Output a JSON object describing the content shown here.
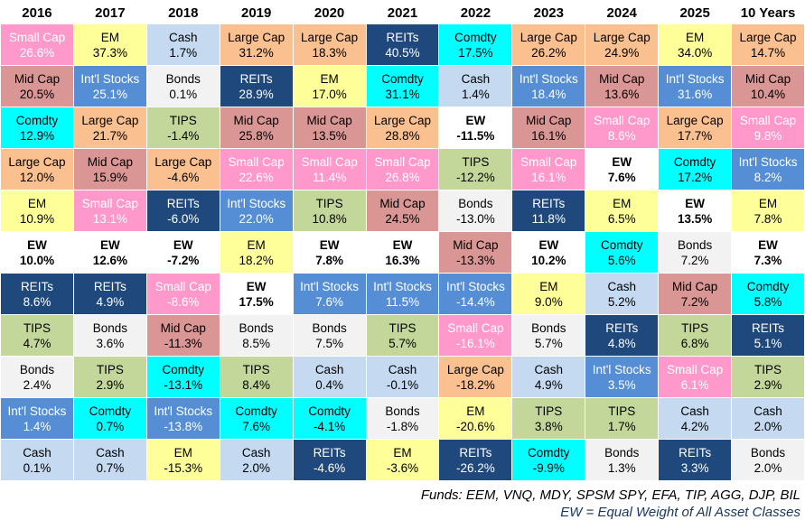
{
  "chart_data": {
    "type": "table",
    "layout": "asset-class returns quilt; each column ranked best to worst; cells colored by asset class",
    "assets": {
      "small_cap": {
        "label": "Small Cap",
        "bg": "#FF99CC",
        "fg": "#FFFFFF"
      },
      "mid_cap": {
        "label": "Mid Cap",
        "bg": "#D99694",
        "fg": "#000000"
      },
      "comdty": {
        "label": "Comdty",
        "bg": "#00FFFF",
        "fg": "#000000"
      },
      "large_cap": {
        "label": "Large Cap",
        "bg": "#FAC090",
        "fg": "#000000"
      },
      "em": {
        "label": "EM",
        "bg": "#FFFF99",
        "fg": "#000000"
      },
      "ew": {
        "label": "EW",
        "bg": "#FFFFFF",
        "fg": "#000000",
        "bold": true
      },
      "reits": {
        "label": "REITs",
        "bg": "#1F497D",
        "fg": "#FFFFFF"
      },
      "tips": {
        "label": "TIPS",
        "bg": "#C4D79B",
        "fg": "#000000"
      },
      "bonds": {
        "label": "Bonds",
        "bg": "#F2F2F2",
        "fg": "#000000"
      },
      "intl_stocks": {
        "label": "Int'l Stocks",
        "bg": "#558ED5",
        "fg": "#FFFFFF"
      },
      "cash": {
        "label": "Cash",
        "bg": "#C5D9F1",
        "fg": "#000000"
      }
    },
    "columns": [
      {
        "year": "2016",
        "cells": [
          [
            "small_cap",
            26.6
          ],
          [
            "mid_cap",
            20.5
          ],
          [
            "comdty",
            12.9
          ],
          [
            "large_cap",
            12.0
          ],
          [
            "em",
            10.9
          ],
          [
            "ew",
            10.0
          ],
          [
            "reits",
            8.6
          ],
          [
            "tips",
            4.7
          ],
          [
            "bonds",
            2.4
          ],
          [
            "intl_stocks",
            1.4
          ],
          [
            "cash",
            0.1
          ]
        ]
      },
      {
        "year": "2017",
        "cells": [
          [
            "em",
            37.3
          ],
          [
            "intl_stocks",
            25.1
          ],
          [
            "large_cap",
            21.7
          ],
          [
            "mid_cap",
            15.9
          ],
          [
            "small_cap",
            13.1
          ],
          [
            "ew",
            12.6
          ],
          [
            "reits",
            4.9
          ],
          [
            "bonds",
            3.6
          ],
          [
            "tips",
            2.9
          ],
          [
            "comdty",
            0.7
          ],
          [
            "cash",
            0.7
          ]
        ]
      },
      {
        "year": "2018",
        "cells": [
          [
            "cash",
            1.7
          ],
          [
            "bonds",
            0.1
          ],
          [
            "tips",
            -1.4
          ],
          [
            "large_cap",
            -4.6
          ],
          [
            "reits",
            -6.0
          ],
          [
            "ew",
            -7.2
          ],
          [
            "small_cap",
            -8.6
          ],
          [
            "mid_cap",
            -11.3
          ],
          [
            "comdty",
            -13.1
          ],
          [
            "intl_stocks",
            -13.8
          ],
          [
            "em",
            -15.3
          ]
        ]
      },
      {
        "year": "2019",
        "cells": [
          [
            "large_cap",
            31.2
          ],
          [
            "reits",
            28.9
          ],
          [
            "mid_cap",
            25.8
          ],
          [
            "small_cap",
            22.6
          ],
          [
            "intl_stocks",
            22.0
          ],
          [
            "em",
            18.2
          ],
          [
            "ew",
            17.5
          ],
          [
            "bonds",
            8.5
          ],
          [
            "tips",
            8.4
          ],
          [
            "comdty",
            7.6
          ],
          [
            "cash",
            2.0
          ]
        ]
      },
      {
        "year": "2020",
        "cells": [
          [
            "large_cap",
            18.3
          ],
          [
            "em",
            17.0
          ],
          [
            "mid_cap",
            13.5
          ],
          [
            "small_cap",
            11.4
          ],
          [
            "tips",
            10.8
          ],
          [
            "ew",
            7.8
          ],
          [
            "intl_stocks",
            7.6
          ],
          [
            "bonds",
            7.5
          ],
          [
            "cash",
            0.4
          ],
          [
            "comdty",
            -4.1
          ],
          [
            "reits",
            -4.6
          ]
        ]
      },
      {
        "year": "2021",
        "cells": [
          [
            "reits",
            40.5
          ],
          [
            "comdty",
            31.1
          ],
          [
            "large_cap",
            28.8
          ],
          [
            "small_cap",
            26.8
          ],
          [
            "mid_cap",
            24.5
          ],
          [
            "ew",
            16.3
          ],
          [
            "intl_stocks",
            11.5
          ],
          [
            "tips",
            5.7
          ],
          [
            "cash",
            -0.1
          ],
          [
            "bonds",
            -1.8
          ],
          [
            "em",
            -3.6
          ]
        ]
      },
      {
        "year": "2022",
        "cells": [
          [
            "comdty",
            17.5
          ],
          [
            "cash",
            1.4
          ],
          [
            "ew",
            -11.5
          ],
          [
            "tips",
            -12.2
          ],
          [
            "bonds",
            -13.0
          ],
          [
            "mid_cap",
            -13.3
          ],
          [
            "intl_stocks",
            -14.4
          ],
          [
            "small_cap",
            -16.1
          ],
          [
            "large_cap",
            -18.2
          ],
          [
            "em",
            -20.6
          ],
          [
            "reits",
            -26.2
          ]
        ]
      },
      {
        "year": "2023",
        "cells": [
          [
            "large_cap",
            26.2
          ],
          [
            "intl_stocks",
            18.4
          ],
          [
            "mid_cap",
            16.1
          ],
          [
            "small_cap",
            16.1
          ],
          [
            "reits",
            11.8
          ],
          [
            "ew",
            10.2
          ],
          [
            "em",
            9.0
          ],
          [
            "bonds",
            5.7
          ],
          [
            "cash",
            4.9
          ],
          [
            "tips",
            3.8
          ],
          [
            "comdty",
            -9.9
          ]
        ]
      },
      {
        "year": "2024",
        "cells": [
          [
            "large_cap",
            24.9
          ],
          [
            "mid_cap",
            13.6
          ],
          [
            "small_cap",
            8.6
          ],
          [
            "ew",
            7.6
          ],
          [
            "em",
            6.5
          ],
          [
            "comdty",
            5.6
          ],
          [
            "cash",
            5.2
          ],
          [
            "reits",
            4.8
          ],
          [
            "intl_stocks",
            3.5
          ],
          [
            "tips",
            1.7
          ],
          [
            "bonds",
            1.3
          ]
        ]
      },
      {
        "year": "2025",
        "cells": [
          [
            "em",
            34.0
          ],
          [
            "intl_stocks",
            31.6
          ],
          [
            "large_cap",
            17.7
          ],
          [
            "comdty",
            17.2
          ],
          [
            "ew",
            13.5
          ],
          [
            "bonds",
            7.2
          ],
          [
            "mid_cap",
            7.2
          ],
          [
            "tips",
            6.8
          ],
          [
            "small_cap",
            6.1
          ],
          [
            "cash",
            4.2
          ],
          [
            "reits",
            3.3
          ]
        ]
      },
      {
        "year": "10 Years",
        "cells": [
          [
            "large_cap",
            14.7
          ],
          [
            "mid_cap",
            10.4
          ],
          [
            "small_cap",
            9.8
          ],
          [
            "intl_stocks",
            8.2
          ],
          [
            "em",
            7.8
          ],
          [
            "ew",
            7.3
          ],
          [
            "comdty",
            5.8
          ],
          [
            "reits",
            5.1
          ],
          [
            "tips",
            2.9
          ],
          [
            "cash",
            2.0
          ],
          [
            "bonds",
            2.0
          ]
        ]
      }
    ]
  },
  "footer": {
    "line1": "Funds: EEM, VNQ, MDY, SPSM SPY, EFA, TIP, AGG, DJP, BIL",
    "line2": "EW = Equal Weight of All Asset Classes"
  }
}
